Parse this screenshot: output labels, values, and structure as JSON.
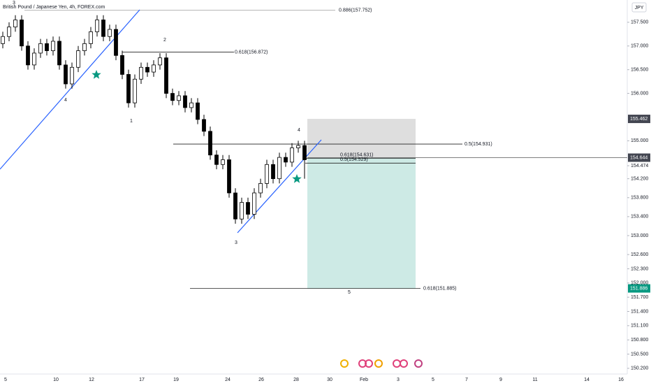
{
  "chart_data": {
    "type": "candlestick",
    "title": "British Pound / Japanese Yen, 4h, FOREX.com",
    "currency": "JPY",
    "open": [
      157.05,
      157.2,
      157.4,
      157.55,
      157.0,
      156.6,
      156.85,
      157.05,
      156.9,
      157.1,
      156.6,
      156.2,
      156.55,
      156.9,
      157.05,
      157.3,
      157.55,
      157.2,
      157.35,
      156.8,
      156.4,
      155.8,
      156.3,
      156.55,
      156.45,
      156.6,
      156.75,
      156.0,
      155.85,
      155.95,
      155.7,
      155.8,
      155.45,
      155.2,
      154.7,
      154.5,
      154.6,
      153.9,
      153.35,
      153.7,
      153.45,
      153.9,
      154.1,
      154.5,
      154.2,
      154.65,
      154.55,
      154.85,
      154.9
    ],
    "high": [
      157.3,
      157.5,
      157.65,
      157.65,
      157.1,
      156.95,
      157.15,
      157.15,
      157.2,
      157.2,
      156.7,
      156.65,
      157.0,
      157.15,
      157.4,
      157.65,
      157.65,
      157.45,
      157.45,
      156.9,
      156.5,
      156.4,
      156.65,
      156.65,
      156.7,
      156.85,
      156.85,
      156.1,
      156.05,
      156.05,
      155.9,
      155.9,
      155.55,
      155.3,
      154.8,
      154.7,
      154.7,
      154.0,
      153.8,
      153.8,
      154.0,
      154.2,
      154.6,
      154.6,
      154.75,
      154.75,
      154.95,
      155.0,
      155.0
    ],
    "low": [
      156.95,
      157.1,
      157.3,
      156.9,
      156.5,
      156.5,
      156.75,
      156.8,
      156.8,
      156.5,
      156.1,
      156.1,
      156.45,
      156.8,
      156.95,
      157.2,
      157.1,
      157.1,
      156.7,
      156.3,
      155.7,
      155.7,
      156.2,
      156.35,
      156.35,
      156.5,
      155.9,
      155.75,
      155.75,
      155.6,
      155.6,
      155.35,
      155.1,
      154.6,
      154.4,
      154.4,
      153.8,
      153.25,
      153.25,
      153.35,
      153.35,
      153.8,
      154.0,
      154.1,
      154.1,
      154.45,
      154.45,
      154.75,
      154.2
    ],
    "close": [
      157.2,
      157.4,
      157.55,
      157.0,
      156.6,
      156.85,
      157.05,
      156.9,
      157.1,
      156.6,
      156.2,
      156.55,
      156.9,
      157.05,
      157.3,
      157.55,
      157.2,
      157.35,
      156.8,
      156.4,
      155.8,
      156.3,
      156.55,
      156.45,
      156.6,
      156.75,
      156.0,
      155.85,
      155.95,
      155.7,
      155.8,
      155.45,
      155.2,
      154.7,
      154.5,
      154.6,
      153.9,
      153.35,
      153.7,
      153.45,
      153.9,
      154.1,
      154.5,
      154.2,
      154.65,
      154.55,
      154.85,
      154.9,
      154.6
    ],
    "ylim": [
      150.08,
      157.97
    ],
    "yticks": [
      {
        "value": 157.5,
        "label": "157.500"
      },
      {
        "value": 157.0,
        "label": "157.000"
      },
      {
        "value": 156.5,
        "label": "156.500"
      },
      {
        "value": 156.0,
        "label": "156.000"
      },
      {
        "value": 155.0,
        "label": "155.000"
      },
      {
        "value": 154.474,
        "label": "154.474"
      },
      {
        "value": 154.2,
        "label": "154.200"
      },
      {
        "value": 153.8,
        "label": "153.800"
      },
      {
        "value": 153.4,
        "label": "153.400"
      },
      {
        "value": 153.0,
        "label": "153.000"
      },
      {
        "value": 152.6,
        "label": "152.600"
      },
      {
        "value": 152.3,
        "label": "152.300"
      },
      {
        "value": 152.0,
        "label": "152.000"
      },
      {
        "value": 151.7,
        "label": "151.700"
      },
      {
        "value": 151.4,
        "label": "151.400"
      },
      {
        "value": 151.1,
        "label": "151.100"
      },
      {
        "value": 150.8,
        "label": "150.800"
      },
      {
        "value": 150.5,
        "label": "150.500"
      },
      {
        "value": 150.2,
        "label": "150.200"
      }
    ],
    "x_labels": [
      "5",
      "10",
      "12",
      "17",
      "19",
      "24",
      "26",
      "28",
      "30",
      "Feb",
      "3",
      "5",
      "7",
      "9",
      "11",
      "14",
      "16"
    ],
    "fib_levels": [
      {
        "label": "0.886(157.752)",
        "price": 157.752
      },
      {
        "label": "0.618(156.872)",
        "price": 156.872
      },
      {
        "label": "0.5(154.931)",
        "price": 154.931
      },
      {
        "label": "0.618(154.631)",
        "price": 154.631
      },
      {
        "label": "0.5(154.529)",
        "price": 154.529
      },
      {
        "label": "0.618(151.885)",
        "price": 151.885
      }
    ],
    "wave_labels": [
      "3",
      "4",
      "1",
      "2",
      "3",
      "4",
      "5"
    ],
    "position": {
      "stop": 155.462,
      "entry": 154.644,
      "target": 151.886
    },
    "up_color": "#ffffff",
    "down_color": "#000000"
  }
}
